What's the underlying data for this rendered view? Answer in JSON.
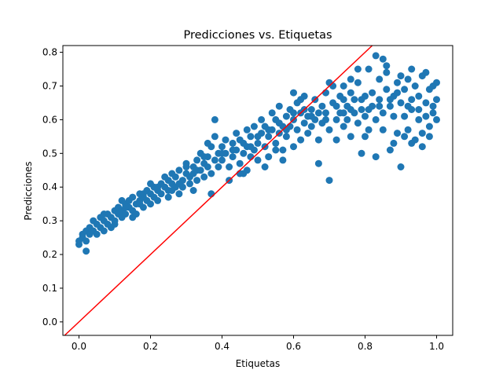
{
  "chart_data": {
    "type": "scatter",
    "title": "Predicciones vs. Etiquetas",
    "xlabel": "Etiquetas",
    "ylabel": "Predicciones",
    "xlim": [
      -0.045,
      1.045
    ],
    "ylim": [
      -0.04,
      0.82
    ],
    "xticks": [
      0.0,
      0.2,
      0.4,
      0.6,
      0.8,
      1.0
    ],
    "xtick_labels": [
      "0.0",
      "0.2",
      "0.4",
      "0.6",
      "0.8",
      "1.0"
    ],
    "yticks": [
      0.0,
      0.1,
      0.2,
      0.3,
      0.4,
      0.5,
      0.6,
      0.7,
      0.8
    ],
    "ytick_labels": [
      "0.0",
      "0.1",
      "0.2",
      "0.3",
      "0.4",
      "0.5",
      "0.6",
      "0.7",
      "0.8"
    ],
    "grid": false,
    "colors": {
      "points": "#1f77b4",
      "reference_line": "#ff0000",
      "axes": "#000000"
    },
    "reference_line": {
      "slope": 1,
      "intercept": 0
    },
    "points": [
      [
        0.0,
        0.23
      ],
      [
        0.0,
        0.24
      ],
      [
        0.01,
        0.25
      ],
      [
        0.01,
        0.26
      ],
      [
        0.02,
        0.24
      ],
      [
        0.02,
        0.27
      ],
      [
        0.02,
        0.21
      ],
      [
        0.03,
        0.26
      ],
      [
        0.03,
        0.28
      ],
      [
        0.04,
        0.27
      ],
      [
        0.04,
        0.3
      ],
      [
        0.05,
        0.29
      ],
      [
        0.05,
        0.26
      ],
      [
        0.06,
        0.28
      ],
      [
        0.06,
        0.31
      ],
      [
        0.07,
        0.3
      ],
      [
        0.07,
        0.27
      ],
      [
        0.08,
        0.29
      ],
      [
        0.08,
        0.32
      ],
      [
        0.09,
        0.31
      ],
      [
        0.09,
        0.28
      ],
      [
        0.1,
        0.33
      ],
      [
        0.1,
        0.3
      ],
      [
        0.11,
        0.32
      ],
      [
        0.11,
        0.34
      ],
      [
        0.12,
        0.31
      ],
      [
        0.12,
        0.33
      ],
      [
        0.13,
        0.35
      ],
      [
        0.13,
        0.32
      ],
      [
        0.14,
        0.34
      ],
      [
        0.14,
        0.36
      ],
      [
        0.15,
        0.33
      ],
      [
        0.15,
        0.37
      ],
      [
        0.16,
        0.35
      ],
      [
        0.16,
        0.32
      ],
      [
        0.17,
        0.36
      ],
      [
        0.17,
        0.38
      ],
      [
        0.18,
        0.34
      ],
      [
        0.18,
        0.37
      ],
      [
        0.19,
        0.36
      ],
      [
        0.19,
        0.39
      ],
      [
        0.2,
        0.35
      ],
      [
        0.2,
        0.38
      ],
      [
        0.21,
        0.4
      ],
      [
        0.21,
        0.37
      ],
      [
        0.22,
        0.39
      ],
      [
        0.22,
        0.36
      ],
      [
        0.23,
        0.41
      ],
      [
        0.23,
        0.38
      ],
      [
        0.24,
        0.4
      ],
      [
        0.24,
        0.43
      ],
      [
        0.25,
        0.39
      ],
      [
        0.25,
        0.42
      ],
      [
        0.26,
        0.41
      ],
      [
        0.26,
        0.44
      ],
      [
        0.27,
        0.4
      ],
      [
        0.27,
        0.43
      ],
      [
        0.28,
        0.38
      ],
      [
        0.28,
        0.45
      ],
      [
        0.29,
        0.42
      ],
      [
        0.29,
        0.4
      ],
      [
        0.3,
        0.44
      ],
      [
        0.3,
        0.47
      ],
      [
        0.31,
        0.43
      ],
      [
        0.31,
        0.41
      ],
      [
        0.32,
        0.46
      ],
      [
        0.32,
        0.44
      ],
      [
        0.33,
        0.48
      ],
      [
        0.33,
        0.42
      ],
      [
        0.34,
        0.45
      ],
      [
        0.34,
        0.5
      ],
      [
        0.35,
        0.47
      ],
      [
        0.35,
        0.43
      ],
      [
        0.36,
        0.49
      ],
      [
        0.36,
        0.46
      ],
      [
        0.37,
        0.52
      ],
      [
        0.37,
        0.44
      ],
      [
        0.38,
        0.48
      ],
      [
        0.38,
        0.55
      ],
      [
        0.39,
        0.5
      ],
      [
        0.39,
        0.46
      ],
      [
        0.4,
        0.52
      ],
      [
        0.4,
        0.48
      ],
      [
        0.41,
        0.54
      ],
      [
        0.41,
        0.5
      ],
      [
        0.42,
        0.46
      ],
      [
        0.42,
        0.42
      ],
      [
        0.43,
        0.53
      ],
      [
        0.43,
        0.49
      ],
      [
        0.44,
        0.56
      ],
      [
        0.44,
        0.51
      ],
      [
        0.45,
        0.47
      ],
      [
        0.45,
        0.54
      ],
      [
        0.46,
        0.5
      ],
      [
        0.46,
        0.44
      ],
      [
        0.47,
        0.57
      ],
      [
        0.47,
        0.52
      ],
      [
        0.48,
        0.49
      ],
      [
        0.48,
        0.55
      ],
      [
        0.49,
        0.51
      ],
      [
        0.49,
        0.58
      ],
      [
        0.5,
        0.53
      ],
      [
        0.5,
        0.48
      ],
      [
        0.51,
        0.56
      ],
      [
        0.51,
        0.6
      ],
      [
        0.52,
        0.52
      ],
      [
        0.52,
        0.58
      ],
      [
        0.53,
        0.55
      ],
      [
        0.53,
        0.49
      ],
      [
        0.54,
        0.62
      ],
      [
        0.54,
        0.57
      ],
      [
        0.55,
        0.53
      ],
      [
        0.55,
        0.6
      ],
      [
        0.56,
        0.56
      ],
      [
        0.56,
        0.64
      ],
      [
        0.57,
        0.51
      ],
      [
        0.57,
        0.58
      ],
      [
        0.58,
        0.61
      ],
      [
        0.58,
        0.55
      ],
      [
        0.59,
        0.63
      ],
      [
        0.59,
        0.58
      ],
      [
        0.6,
        0.52
      ],
      [
        0.6,
        0.6
      ],
      [
        0.61,
        0.65
      ],
      [
        0.61,
        0.57
      ],
      [
        0.62,
        0.62
      ],
      [
        0.62,
        0.54
      ],
      [
        0.63,
        0.59
      ],
      [
        0.63,
        0.67
      ],
      [
        0.64,
        0.61
      ],
      [
        0.64,
        0.56
      ],
      [
        0.65,
        0.63
      ],
      [
        0.65,
        0.58
      ],
      [
        0.66,
        0.66
      ],
      [
        0.66,
        0.6
      ],
      [
        0.67,
        0.47
      ],
      [
        0.67,
        0.54
      ],
      [
        0.68,
        0.64
      ],
      [
        0.68,
        0.59
      ],
      [
        0.69,
        0.68
      ],
      [
        0.69,
        0.62
      ],
      [
        0.7,
        0.57
      ],
      [
        0.7,
        0.42
      ],
      [
        0.71,
        0.65
      ],
      [
        0.71,
        0.7
      ],
      [
        0.72,
        0.6
      ],
      [
        0.72,
        0.54
      ],
      [
        0.73,
        0.67
      ],
      [
        0.73,
        0.62
      ],
      [
        0.74,
        0.58
      ],
      [
        0.74,
        0.7
      ],
      [
        0.75,
        0.64
      ],
      [
        0.75,
        0.6
      ],
      [
        0.76,
        0.68
      ],
      [
        0.76,
        0.55
      ],
      [
        0.77,
        0.62
      ],
      [
        0.77,
        0.66
      ],
      [
        0.78,
        0.59
      ],
      [
        0.78,
        0.71
      ],
      [
        0.79,
        0.63
      ],
      [
        0.79,
        0.5
      ],
      [
        0.8,
        0.67
      ],
      [
        0.8,
        0.61
      ],
      [
        0.81,
        0.57
      ],
      [
        0.81,
        0.75
      ],
      [
        0.82,
        0.64
      ],
      [
        0.82,
        0.68
      ],
      [
        0.83,
        0.6
      ],
      [
        0.83,
        0.79
      ],
      [
        0.83,
        0.49
      ],
      [
        0.84,
        0.66
      ],
      [
        0.84,
        0.72
      ],
      [
        0.85,
        0.62
      ],
      [
        0.85,
        0.57
      ],
      [
        0.86,
        0.69
      ],
      [
        0.86,
        0.74
      ],
      [
        0.87,
        0.64
      ],
      [
        0.87,
        0.51
      ],
      [
        0.88,
        0.67
      ],
      [
        0.88,
        0.61
      ],
      [
        0.89,
        0.71
      ],
      [
        0.89,
        0.56
      ],
      [
        0.9,
        0.65
      ],
      [
        0.9,
        0.46
      ],
      [
        0.91,
        0.69
      ],
      [
        0.91,
        0.61
      ],
      [
        0.92,
        0.72
      ],
      [
        0.92,
        0.57
      ],
      [
        0.93,
        0.66
      ],
      [
        0.93,
        0.63
      ],
      [
        0.94,
        0.7
      ],
      [
        0.94,
        0.54
      ],
      [
        0.95,
        0.67
      ],
      [
        0.95,
        0.6
      ],
      [
        0.96,
        0.73
      ],
      [
        0.96,
        0.56
      ],
      [
        0.97,
        0.65
      ],
      [
        0.97,
        0.61
      ],
      [
        0.98,
        0.69
      ],
      [
        0.98,
        0.58
      ],
      [
        0.99,
        0.64
      ],
      [
        0.99,
        0.62
      ],
      [
        1.0,
        0.66
      ],
      [
        1.0,
        0.6
      ],
      [
        1.0,
        0.71
      ],
      [
        0.85,
        0.78
      ],
      [
        0.86,
        0.76
      ],
      [
        0.78,
        0.75
      ],
      [
        0.7,
        0.71
      ],
      [
        0.37,
        0.38
      ],
      [
        0.36,
        0.53
      ],
      [
        0.38,
        0.6
      ],
      [
        0.2,
        0.41
      ],
      [
        0.12,
        0.36
      ],
      [
        0.07,
        0.32
      ],
      [
        0.15,
        0.31
      ],
      [
        0.17,
        0.35
      ],
      [
        0.25,
        0.37
      ],
      [
        0.3,
        0.46
      ],
      [
        0.32,
        0.39
      ],
      [
        0.45,
        0.44
      ],
      [
        0.47,
        0.45
      ],
      [
        0.52,
        0.46
      ],
      [
        0.55,
        0.51
      ],
      [
        0.57,
        0.48
      ],
      [
        0.6,
        0.68
      ],
      [
        0.62,
        0.66
      ],
      [
        0.74,
        0.66
      ],
      [
        0.76,
        0.72
      ],
      [
        0.8,
        0.55
      ],
      [
        0.88,
        0.53
      ],
      [
        0.91,
        0.55
      ],
      [
        0.93,
        0.53
      ],
      [
        0.96,
        0.52
      ],
      [
        0.98,
        0.55
      ],
      [
        0.99,
        0.7
      ],
      [
        0.97,
        0.74
      ],
      [
        0.93,
        0.75
      ],
      [
        0.9,
        0.73
      ],
      [
        0.89,
        0.68
      ],
      [
        0.1,
        0.29
      ],
      [
        0.13,
        0.34
      ],
      [
        0.18,
        0.38
      ],
      [
        0.22,
        0.4
      ],
      [
        0.26,
        0.39
      ],
      [
        0.28,
        0.41
      ],
      [
        0.33,
        0.45
      ],
      [
        0.35,
        0.49
      ],
      [
        0.4,
        0.5
      ],
      [
        0.43,
        0.51
      ],
      [
        0.46,
        0.53
      ],
      [
        0.48,
        0.52
      ],
      [
        0.5,
        0.55
      ],
      [
        0.53,
        0.57
      ],
      [
        0.56,
        0.59
      ],
      [
        0.58,
        0.57
      ],
      [
        0.6,
        0.62
      ],
      [
        0.63,
        0.63
      ],
      [
        0.65,
        0.61
      ],
      [
        0.67,
        0.62
      ],
      [
        0.69,
        0.6
      ],
      [
        0.72,
        0.64
      ],
      [
        0.74,
        0.62
      ],
      [
        0.76,
        0.63
      ],
      [
        0.79,
        0.66
      ],
      [
        0.81,
        0.63
      ],
      [
        0.84,
        0.64
      ],
      [
        0.87,
        0.66
      ],
      [
        0.92,
        0.64
      ],
      [
        0.95,
        0.63
      ]
    ]
  }
}
